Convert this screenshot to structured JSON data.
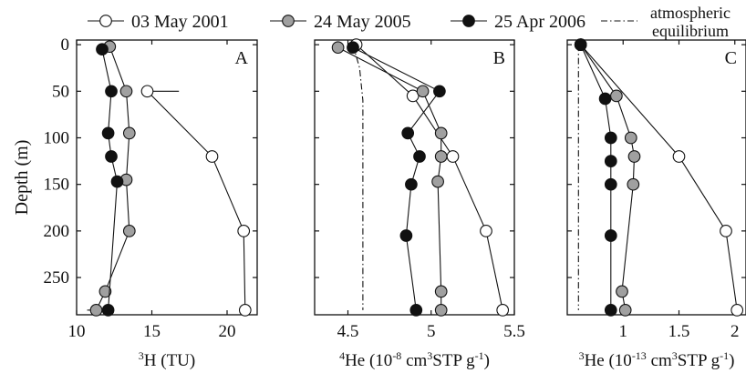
{
  "legend": {
    "items": [
      {
        "label": "03 May 2001",
        "marker": "open-circle"
      },
      {
        "label": "24 May 2005",
        "marker": "gray-circle"
      },
      {
        "label": "25 Apr 2006",
        "marker": "black-circle"
      },
      {
        "label": "atmospheric equilibrium",
        "line1": "atmospheric",
        "line2": "equilibrium",
        "marker": "dash-dot-line"
      }
    ],
    "placement": "top"
  },
  "colors": {
    "open": "#ffffff",
    "gray": "#a0a0a0",
    "black": "#111111",
    "stroke": "#111111"
  },
  "chart_data": [
    {
      "type": "line",
      "panel_label": "A",
      "xlabel": "³H (TU)",
      "xlabel_sup": "3",
      "xlabel_rest": "H (TU)",
      "ylabel": "Depth (m)",
      "xlim": [
        10,
        22
      ],
      "ylim": [
        290,
        -5
      ],
      "xticks": [
        10,
        15,
        20
      ],
      "yticks": [
        0,
        50,
        100,
        150,
        200,
        250
      ],
      "series": [
        {
          "name": "03 May 2001",
          "marker": "open",
          "points": [
            [
              14.7,
              50
            ],
            [
              19.0,
              120
            ],
            [
              21.1,
              200
            ],
            [
              21.2,
              285
            ]
          ],
          "error_bars": [
            {
              "x": 14.7,
              "y": 50,
              "xmin": 14.7,
              "xmax": 16.8
            }
          ]
        },
        {
          "name": "24 May 2005",
          "marker": "gray",
          "points": [
            [
              12.2,
              2
            ],
            [
              13.3,
              50
            ],
            [
              13.5,
              95
            ],
            [
              13.3,
              145
            ],
            [
              13.5,
              200
            ],
            [
              11.9,
              265
            ],
            [
              11.3,
              285
            ]
          ],
          "error_bars": [
            {
              "x": 11.3,
              "y": 285,
              "xmin": 10.7,
              "xmax": 11.3
            }
          ]
        },
        {
          "name": "25 Apr 2006",
          "marker": "black",
          "points": [
            [
              11.7,
              5
            ],
            [
              12.3,
              50
            ],
            [
              12.1,
              95
            ],
            [
              12.3,
              120
            ],
            [
              12.7,
              147
            ],
            [
              12.1,
              285
            ]
          ]
        }
      ]
    },
    {
      "type": "line",
      "panel_label": "B",
      "xlabel": "⁴He (10⁻⁸ cm³STP g⁻¹)",
      "xlabel_parts": [
        "4",
        "He (10",
        "-8",
        " cm",
        "3",
        "STP g",
        "-1",
        ")"
      ],
      "xlim": [
        4.3,
        5.5
      ],
      "ylim": [
        290,
        -5
      ],
      "xticks": [
        4.5,
        5,
        5.5
      ],
      "series": [
        {
          "name": "03 May 2001",
          "marker": "open",
          "points": [
            [
              4.55,
              0
            ],
            [
              4.89,
              55
            ],
            [
              5.13,
              120
            ],
            [
              5.33,
              200
            ],
            [
              5.43,
              285
            ]
          ]
        },
        {
          "name": "24 May 2005",
          "marker": "gray",
          "points": [
            [
              4.44,
              3
            ],
            [
              4.95,
              50
            ],
            [
              5.06,
              95
            ],
            [
              5.06,
              120
            ],
            [
              5.04,
              147
            ],
            [
              5.06,
              265
            ],
            [
              5.06,
              285
            ]
          ]
        },
        {
          "name": "25 Apr 2006",
          "marker": "black",
          "points": [
            [
              4.53,
              3
            ],
            [
              5.05,
              50
            ],
            [
              4.86,
              95
            ],
            [
              4.93,
              120
            ],
            [
              4.88,
              150
            ],
            [
              4.85,
              205
            ],
            [
              4.91,
              285
            ]
          ]
        },
        {
          "name": "atmospheric equilibrium",
          "marker": "dash-dot",
          "points": [
            [
              4.53,
              0
            ],
            [
              4.57,
              25
            ],
            [
              4.59,
              60
            ],
            [
              4.59,
              150
            ],
            [
              4.59,
              285
            ]
          ]
        }
      ]
    },
    {
      "type": "line",
      "panel_label": "C",
      "xlabel": "³He (10⁻¹³ cm³STP g⁻¹)",
      "xlabel_parts": [
        "3",
        "He (10",
        "-13",
        " cm",
        "3",
        "STP g",
        "-1",
        ")"
      ],
      "xlim": [
        0.5,
        2.1
      ],
      "ylim": [
        290,
        -5
      ],
      "xticks": [
        1,
        1.5,
        2
      ],
      "xticklabels": [
        "1",
        "1.5",
        "2"
      ],
      "series": [
        {
          "name": "03 May 2001",
          "marker": "open",
          "points": [
            [
              0.62,
              0
            ],
            [
              1.5,
              120
            ],
            [
              1.92,
              200
            ],
            [
              2.02,
              285
            ]
          ]
        },
        {
          "name": "24 May 2005",
          "marker": "gray",
          "points": [
            [
              0.62,
              0
            ],
            [
              0.94,
              55
            ],
            [
              1.07,
              100
            ],
            [
              1.1,
              120
            ],
            [
              1.09,
              150
            ],
            [
              0.99,
              265
            ],
            [
              1.02,
              285
            ]
          ]
        },
        {
          "name": "25 Apr 2006",
          "marker": "black",
          "points": [
            [
              0.62,
              0
            ],
            [
              0.84,
              58
            ],
            [
              0.89,
              100
            ],
            [
              0.89,
              125
            ],
            [
              0.89,
              150
            ],
            [
              0.89,
              205
            ],
            [
              0.89,
              285
            ]
          ]
        },
        {
          "name": "atmospheric equilibrium",
          "marker": "dash-dot",
          "points": [
            [
              0.6,
              0
            ],
            [
              0.6,
              285
            ]
          ]
        }
      ]
    }
  ]
}
